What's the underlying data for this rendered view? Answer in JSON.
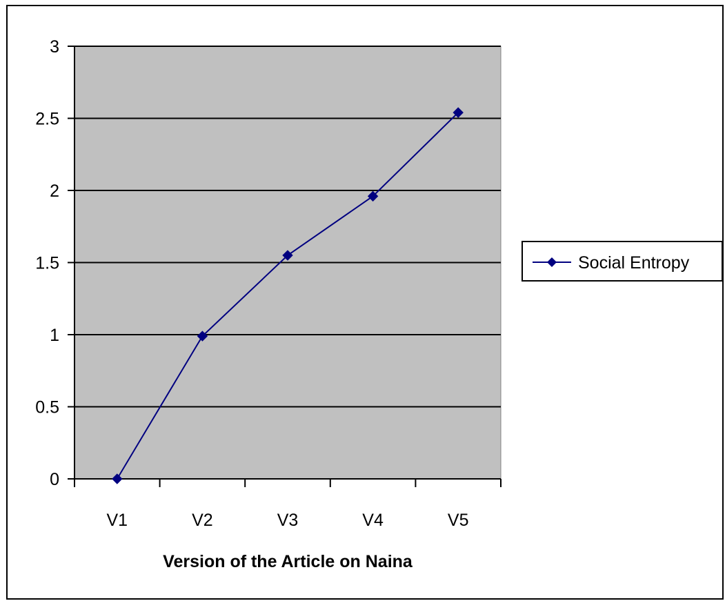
{
  "chart_data": {
    "type": "line",
    "title": "",
    "xlabel": "Version of the Article on Naina",
    "ylabel": "",
    "categories": [
      "V1",
      "V2",
      "V3",
      "V4",
      "V5"
    ],
    "series": [
      {
        "name": "Social Entropy",
        "values": [
          0,
          0.99,
          1.55,
          1.96,
          2.54
        ],
        "color": "#000080",
        "marker": "diamond"
      }
    ],
    "ylim": [
      0,
      3
    ],
    "yticks": [
      0,
      0.5,
      1,
      1.5,
      2,
      2.5,
      3
    ],
    "ytick_labels": [
      "0",
      "0.5",
      "1",
      "1.5",
      "2",
      "2.5",
      "3"
    ],
    "grid": true,
    "legend_position": "right",
    "plot_background": "#c0c0c0",
    "gridline_color": "#000000"
  }
}
